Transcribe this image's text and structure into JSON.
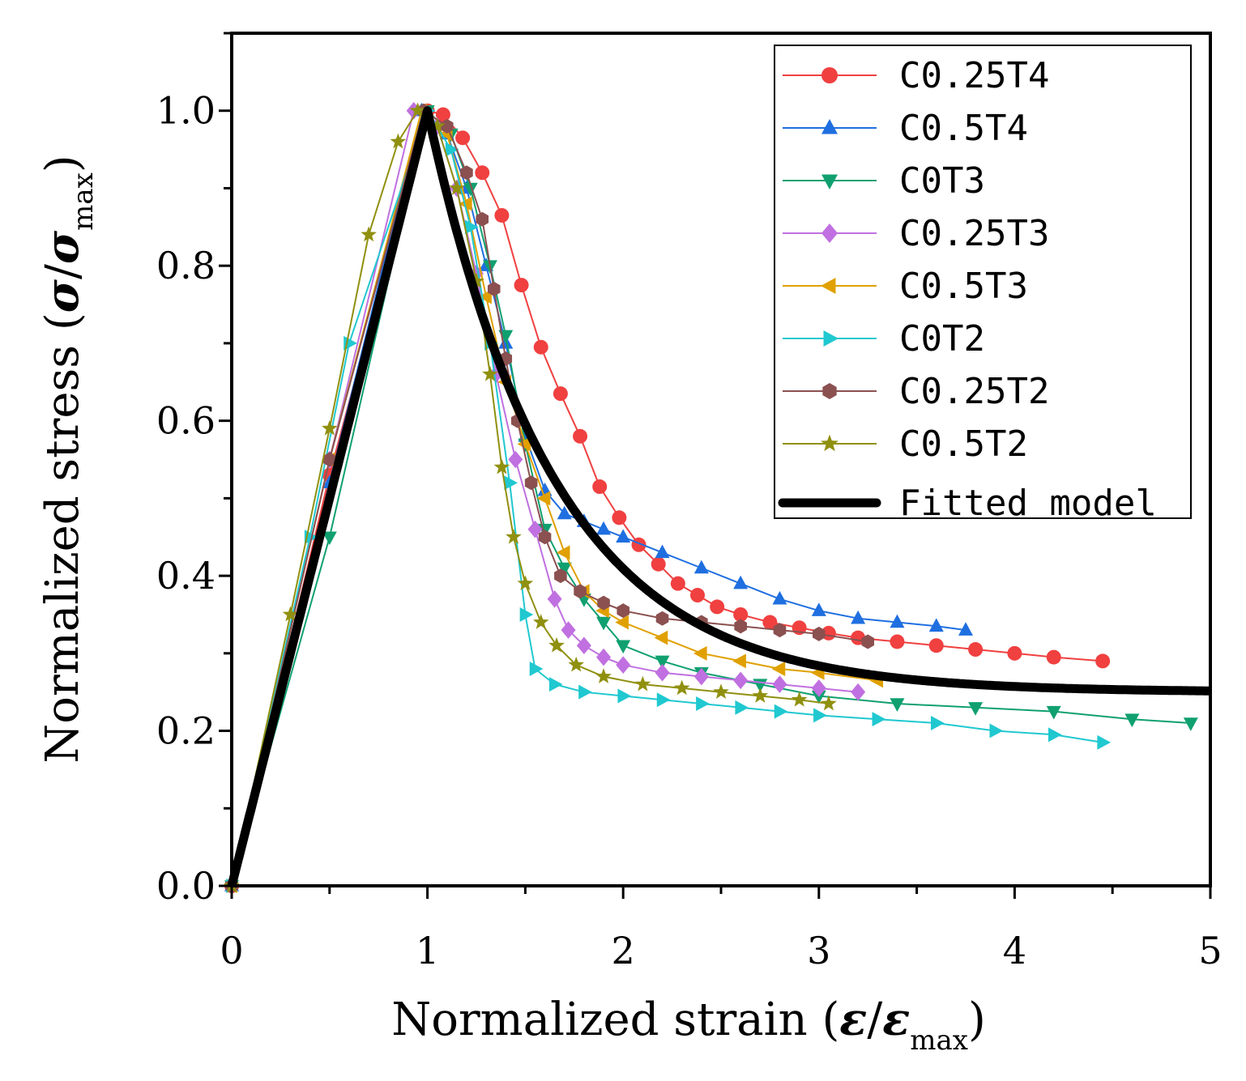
{
  "chart_data": {
    "type": "line",
    "title": "",
    "xlabel": {
      "prefix": "Normalized strain (",
      "symbol": "ε",
      "slash": "/",
      "symbol2": "ε",
      "subscript": "max",
      "suffix": ")"
    },
    "ylabel": {
      "prefix": "Normalized stress (",
      "symbol": "σ",
      "slash": "/",
      "symbol2": "σ",
      "subscript": "max",
      "suffix": ")"
    },
    "xlim": [
      0,
      5
    ],
    "ylim": [
      0,
      1.1
    ],
    "xticks": [
      "0",
      "1",
      "2",
      "3",
      "4",
      "5"
    ],
    "yticks": [
      "0.0",
      "0.2",
      "0.4",
      "0.6",
      "0.8",
      "1.0"
    ],
    "legend_position": "top-right",
    "series": [
      {
        "name": "C0.25T4",
        "color": "#f04040",
        "marker": "circle",
        "x": [
          0,
          0.5,
          1.0,
          1.08,
          1.18,
          1.28,
          1.38,
          1.48,
          1.58,
          1.68,
          1.78,
          1.88,
          1.98,
          2.08,
          2.18,
          2.28,
          2.38,
          2.48,
          2.6,
          2.75,
          2.9,
          3.05,
          3.2,
          3.4,
          3.6,
          3.8,
          4.0,
          4.2,
          4.45
        ],
        "y": [
          0,
          0.53,
          1.0,
          0.995,
          0.965,
          0.92,
          0.865,
          0.775,
          0.695,
          0.635,
          0.58,
          0.515,
          0.475,
          0.44,
          0.415,
          0.39,
          0.375,
          0.36,
          0.35,
          0.34,
          0.333,
          0.326,
          0.32,
          0.315,
          0.31,
          0.305,
          0.3,
          0.295,
          0.29
        ]
      },
      {
        "name": "C0.5T4",
        "color": "#1f6fe0",
        "marker": "triangle-up",
        "x": [
          0,
          0.5,
          0.97,
          1.1,
          1.2,
          1.3,
          1.4,
          1.5,
          1.6,
          1.7,
          1.8,
          1.9,
          2.0,
          2.2,
          2.4,
          2.6,
          2.8,
          3.0,
          3.2,
          3.4,
          3.6,
          3.75
        ],
        "y": [
          0,
          0.52,
          1.0,
          0.97,
          0.9,
          0.8,
          0.7,
          0.58,
          0.51,
          0.48,
          0.47,
          0.46,
          0.45,
          0.43,
          0.41,
          0.39,
          0.37,
          0.355,
          0.345,
          0.34,
          0.335,
          0.33
        ]
      },
      {
        "name": "C0T3",
        "color": "#10a070",
        "marker": "triangle-down",
        "x": [
          0,
          0.5,
          1.0,
          1.12,
          1.22,
          1.32,
          1.4,
          1.5,
          1.6,
          1.7,
          1.8,
          1.9,
          2.0,
          2.2,
          2.4,
          2.7,
          3.0,
          3.4,
          3.8,
          4.2,
          4.6,
          4.9
        ],
        "y": [
          0,
          0.45,
          1.0,
          0.97,
          0.9,
          0.8,
          0.71,
          0.57,
          0.46,
          0.41,
          0.37,
          0.34,
          0.31,
          0.29,
          0.275,
          0.26,
          0.245,
          0.235,
          0.23,
          0.225,
          0.215,
          0.21
        ]
      },
      {
        "name": "C0.25T3",
        "color": "#c070e0",
        "marker": "diamond",
        "x": [
          0,
          0.5,
          0.93,
          1.05,
          1.15,
          1.25,
          1.35,
          1.45,
          1.55,
          1.65,
          1.72,
          1.8,
          1.9,
          2.0,
          2.2,
          2.4,
          2.6,
          2.8,
          3.0,
          3.2
        ],
        "y": [
          0,
          0.55,
          1.0,
          0.98,
          0.9,
          0.79,
          0.66,
          0.55,
          0.46,
          0.37,
          0.33,
          0.31,
          0.295,
          0.285,
          0.275,
          0.27,
          0.265,
          0.26,
          0.255,
          0.25
        ]
      },
      {
        "name": "C0.5T3",
        "color": "#e0a000",
        "marker": "triangle-left",
        "x": [
          0,
          0.5,
          0.97,
          1.1,
          1.2,
          1.3,
          1.4,
          1.5,
          1.6,
          1.7,
          1.8,
          1.9,
          2.0,
          2.2,
          2.4,
          2.6,
          2.8,
          3.0,
          3.3
        ],
        "y": [
          0,
          0.55,
          1.0,
          0.97,
          0.88,
          0.76,
          0.65,
          0.57,
          0.5,
          0.43,
          0.38,
          0.355,
          0.34,
          0.32,
          0.3,
          0.29,
          0.28,
          0.275,
          0.265
        ]
      },
      {
        "name": "C0T2",
        "color": "#20c8d0",
        "marker": "triangle-right",
        "x": [
          0,
          0.4,
          0.6,
          1.0,
          1.12,
          1.22,
          1.32,
          1.42,
          1.5,
          1.55,
          1.65,
          1.8,
          2.0,
          2.2,
          2.4,
          2.6,
          2.8,
          3.0,
          3.3,
          3.6,
          3.9,
          4.2,
          4.45
        ],
        "y": [
          0,
          0.45,
          0.7,
          1.0,
          0.95,
          0.85,
          0.7,
          0.52,
          0.35,
          0.28,
          0.26,
          0.25,
          0.245,
          0.24,
          0.235,
          0.23,
          0.225,
          0.22,
          0.215,
          0.21,
          0.2,
          0.195,
          0.185
        ]
      },
      {
        "name": "C0.25T2",
        "color": "#8b5050",
        "marker": "hexagon",
        "x": [
          0,
          0.5,
          0.98,
          1.1,
          1.2,
          1.28,
          1.34,
          1.4,
          1.46,
          1.53,
          1.6,
          1.68,
          1.78,
          1.9,
          2.0,
          2.2,
          2.4,
          2.6,
          2.8,
          3.0,
          3.25
        ],
        "y": [
          0,
          0.55,
          1.0,
          0.98,
          0.92,
          0.86,
          0.77,
          0.68,
          0.6,
          0.52,
          0.45,
          0.4,
          0.38,
          0.365,
          0.355,
          0.345,
          0.34,
          0.335,
          0.33,
          0.325,
          0.315
        ]
      },
      {
        "name": "C0.5T2",
        "color": "#909010",
        "marker": "star",
        "x": [
          0,
          0.3,
          0.5,
          0.7,
          0.85,
          0.95,
          1.05,
          1.15,
          1.25,
          1.32,
          1.38,
          1.44,
          1.5,
          1.58,
          1.66,
          1.76,
          1.9,
          2.1,
          2.3,
          2.5,
          2.7,
          2.9,
          3.05
        ],
        "y": [
          0,
          0.35,
          0.59,
          0.84,
          0.96,
          1.0,
          0.98,
          0.9,
          0.78,
          0.66,
          0.54,
          0.45,
          0.39,
          0.34,
          0.31,
          0.285,
          0.27,
          0.26,
          0.255,
          0.25,
          0.245,
          0.24,
          0.235
        ]
      },
      {
        "name": "Fitted model",
        "color": "#000000",
        "marker": "none",
        "kind": "fitted"
      }
    ]
  }
}
